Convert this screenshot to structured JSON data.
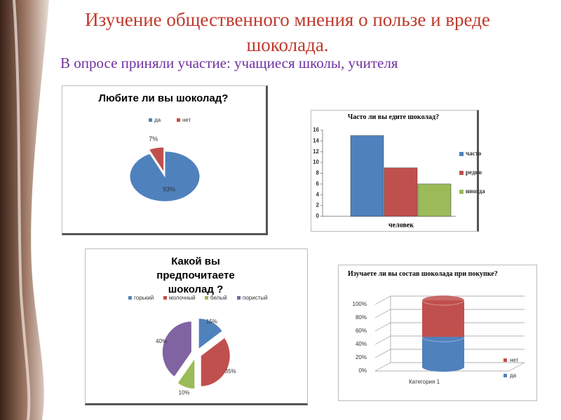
{
  "title": "Изучение общественного мнения о пользе и вреде шоколада.",
  "subtitle": "В опросе приняли участие: учащиеся школы, учителя",
  "chart_data": [
    {
      "type": "pie",
      "title": "Любите ли вы шоколад?",
      "categories": [
        "да",
        "нет"
      ],
      "values": [
        93,
        7
      ],
      "value_labels": [
        "93%",
        "7%"
      ],
      "colors": [
        "#4f81bd",
        "#c0504d"
      ]
    },
    {
      "type": "bar",
      "title": "Часто ли вы едите шоколад?",
      "categories": [
        "человек"
      ],
      "series": [
        {
          "name": "часто",
          "color": "#4f81bd",
          "values": [
            15
          ]
        },
        {
          "name": "редко",
          "color": "#c0504d",
          "values": [
            9
          ]
        },
        {
          "name": "иногда",
          "color": "#9bbb59",
          "values": [
            6
          ]
        }
      ],
      "ylim": [
        0,
        16
      ],
      "yticks": [
        0,
        2,
        4,
        6,
        8,
        10,
        12,
        14,
        16
      ],
      "legend": "right"
    },
    {
      "type": "pie",
      "title": "Какой вы предпочитаете шоколад ?",
      "categories": [
        "горький",
        "молочный",
        "белый",
        "пористый"
      ],
      "values": [
        15,
        35,
        10,
        40
      ],
      "value_labels": [
        "15%",
        "35%",
        "10%",
        "40%"
      ],
      "colors": [
        "#4f81bd",
        "#c0504d",
        "#9bbb59",
        "#8064a2"
      ]
    },
    {
      "type": "stacked_bar",
      "title": "Изучаете ли вы состав шоколада при покупке?",
      "categories": [
        "Категория 1"
      ],
      "series": [
        {
          "name": "да",
          "color": "#4f81bd",
          "values": [
            45
          ]
        },
        {
          "name": "нет",
          "color": "#c0504d",
          "values": [
            55
          ]
        }
      ],
      "ylim": [
        0,
        100
      ],
      "yticks": [
        {
          "value": 0,
          "label": "0%"
        },
        {
          "value": 20,
          "label": "20%"
        },
        {
          "value": 40,
          "label": "40%"
        },
        {
          "value": 60,
          "label": "60%"
        },
        {
          "value": 80,
          "label": "80%"
        },
        {
          "value": 100,
          "label": "100%"
        }
      ],
      "grid": true,
      "legend": "right"
    }
  ]
}
